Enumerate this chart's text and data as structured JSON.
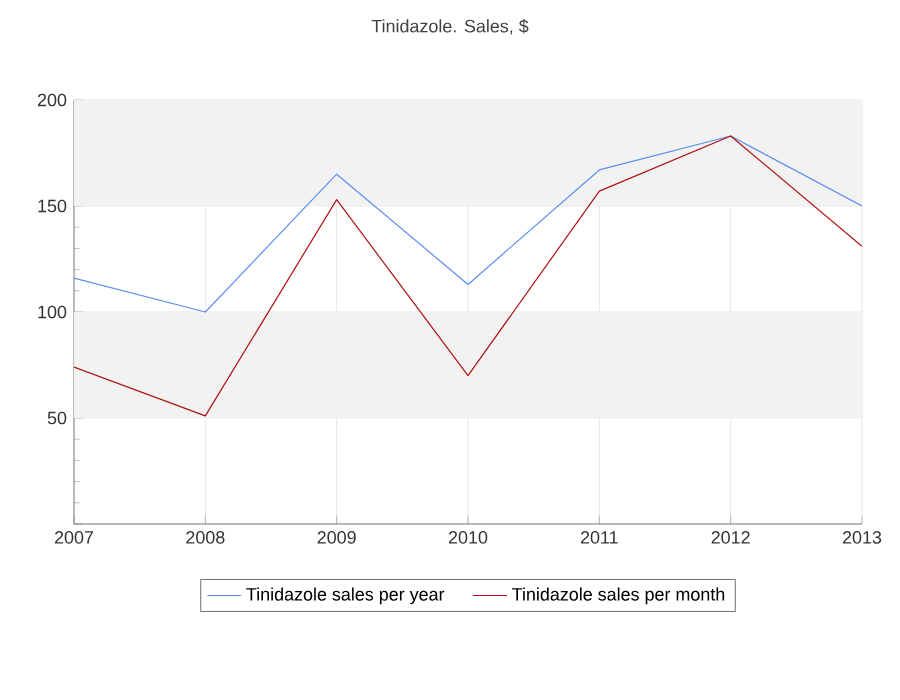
{
  "chart_data": {
    "type": "line",
    "title": "Tinidazole. Sales, $",
    "x": [
      2007,
      2008,
      2009,
      2010,
      2011,
      2012,
      2013
    ],
    "series": [
      {
        "name": "Tinidazole sales per year",
        "color": "#5b8ff0",
        "values": [
          116,
          100,
          165,
          113,
          167,
          183,
          150
        ]
      },
      {
        "name": "Tinidazole sales per month",
        "color": "#b01010",
        "values": [
          74,
          51,
          153,
          70,
          157,
          183,
          131
        ]
      }
    ],
    "xlim": [
      2007,
      2013
    ],
    "xticks": [
      2007,
      2008,
      2009,
      2010,
      2011,
      2012,
      2013
    ],
    "ylim": [
      0,
      200
    ],
    "yticks": [
      {
        "value": 0,
        "label": null
      },
      50,
      100,
      150,
      200
    ],
    "bands": [
      {
        "axis": "y",
        "from": 50,
        "to": 100,
        "color": "#f2f2f2"
      },
      {
        "axis": "y",
        "from": 150,
        "to": 200,
        "color": "#f2f2f2"
      }
    ],
    "grid": true,
    "legend": "bottom",
    "marker": "none",
    "line_style": "solid"
  }
}
